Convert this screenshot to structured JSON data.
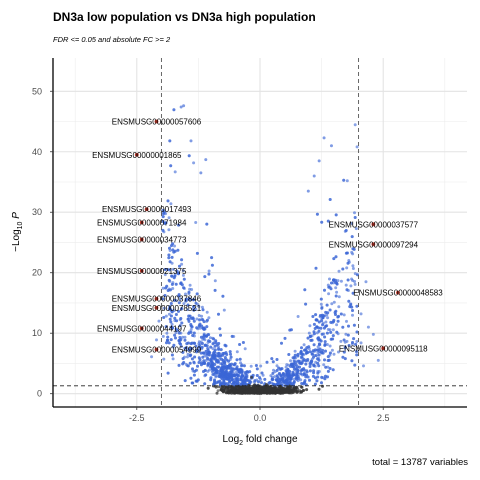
{
  "chart_data": {
    "type": "scatter",
    "title": "DN3a low population vs DN3a high population",
    "subtitle": "FDR <= 0.05 and absolute FC >= 2",
    "caption": "total = 13787 variables",
    "xlabel_main": "Log",
    "xlabel_sub": "2",
    "xlabel_tail": " fold change",
    "ylabel_main": "−Log",
    "ylabel_sub": "10",
    "ylabel_tail": " P",
    "xlim": [
      -4.2,
      4.2
    ],
    "ylim": [
      -2.2,
      55.5
    ],
    "xticks": [
      -2.5,
      0.0,
      2.5
    ],
    "xtick_labels": [
      "-2.5",
      "0.0",
      "2.5"
    ],
    "yticks": [
      0,
      10,
      20,
      30,
      40,
      50
    ],
    "ytick_labels": [
      "0",
      "10",
      "20",
      "30",
      "40",
      "50"
    ],
    "grid": true,
    "fc_cutoffs": [
      -2,
      2
    ],
    "p_cutoff": 1.3,
    "colors": {
      "not_significant": "#333333",
      "log2fc_only": "#3b66d6",
      "significant": "#cc2a1a",
      "threshold_line": "#555555"
    },
    "labeled_genes": [
      {
        "label": "ENSMUSG00000057606",
        "x": -2.1,
        "y": 45.0
      },
      {
        "label": "ENSMUSG00000001865",
        "x": -2.5,
        "y": 39.5
      },
      {
        "label": "ENSMUSG00000017493",
        "x": -2.3,
        "y": 30.5
      },
      {
        "label": "ENSMUSG00000071984",
        "x": -2.4,
        "y": 28.3
      },
      {
        "label": "ENSMUSG00000034773",
        "x": -2.4,
        "y": 25.5
      },
      {
        "label": "ENSMUSG00000021375",
        "x": -2.4,
        "y": 20.3
      },
      {
        "label": "ENSMUSG00000037846",
        "x": -2.1,
        "y": 15.7
      },
      {
        "label": "ENSMUSG00000078521",
        "x": -2.1,
        "y": 14.2
      },
      {
        "label": "ENSMUSG00000044197",
        "x": -2.4,
        "y": 10.8
      },
      {
        "label": "ENSMUSG00000054999",
        "x": -2.1,
        "y": 7.3
      },
      {
        "label": "ENSMUSG00000037577",
        "x": 2.3,
        "y": 28.0
      },
      {
        "label": "ENSMUSG00000097294",
        "x": 2.3,
        "y": 24.7
      },
      {
        "label": "ENSMUSG00000048583",
        "x": 2.8,
        "y": 16.7
      },
      {
        "label": "ENSMUSG00000095118",
        "x": 2.5,
        "y": 7.5
      }
    ]
  }
}
